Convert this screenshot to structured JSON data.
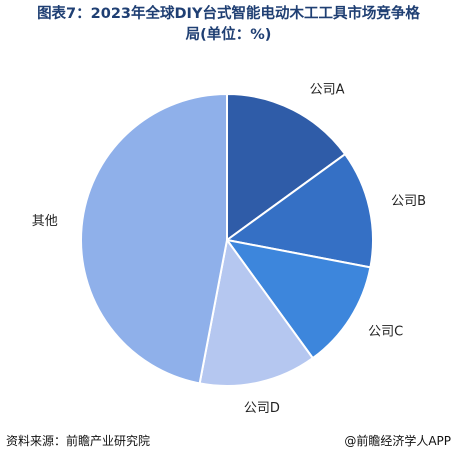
{
  "title_line1": "图表7：2023年全球DIY台式智能电动木工工具市场竞争格",
  "title_line2": "局(单位：%)",
  "watermark": "前瞻产业研究院",
  "footer": {
    "source": "资料来源：前瞻产业研究院",
    "brand": "@前瞻经济学人APP"
  },
  "colors": {
    "A": "#2f5ca8",
    "B": "#3570c5",
    "C": "#3d86dc",
    "D": "#b5c7f0",
    "other": "#8fb0ea"
  },
  "chart_data": {
    "type": "pie",
    "title": "图表7：2023年全球DIY台式智能电动木工工具市场竞争格局(单位：%)",
    "start_angle_deg": 0,
    "direction": "clockwise",
    "slices": [
      {
        "label": "公司A",
        "value": 15,
        "color": "#2f5ca8"
      },
      {
        "label": "公司B",
        "value": 13,
        "color": "#3570c5"
      },
      {
        "label": "公司C",
        "value": 12,
        "color": "#3d86dc"
      },
      {
        "label": "公司D",
        "value": 13,
        "color": "#b5c7f0"
      },
      {
        "label": "其他",
        "value": 47,
        "color": "#8fb0ea"
      }
    ]
  }
}
